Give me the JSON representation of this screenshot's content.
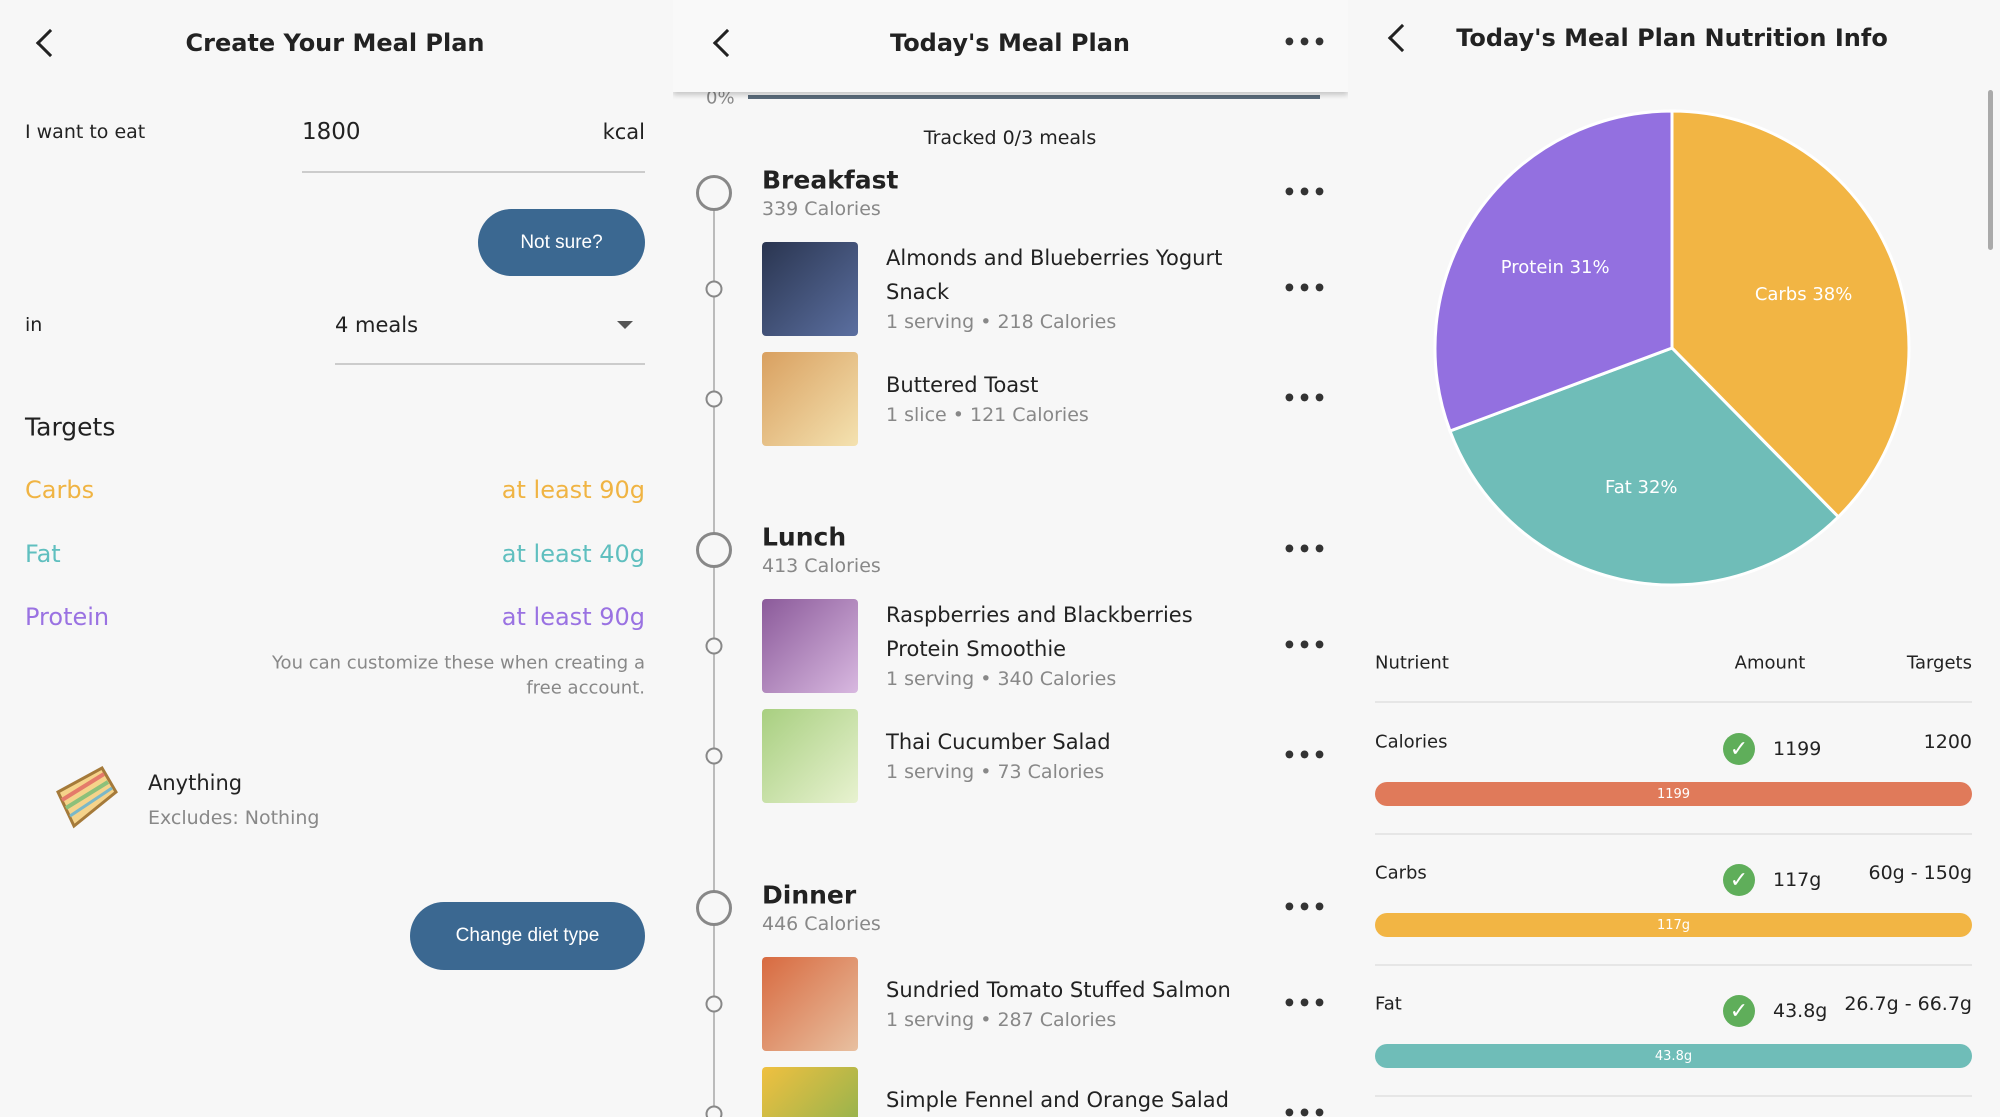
{
  "left": {
    "title": "Create Your Meal Plan",
    "want_label": "I want to eat",
    "kcal_value": "1800",
    "kcal_unit": "kcal",
    "not_sure": "Not sure?",
    "in_label": "in",
    "meals_select": "4 meals",
    "targets_heading": "Targets",
    "targets": [
      {
        "name": "Carbs",
        "value": "at least 90g",
        "color": "#f0b443"
      },
      {
        "name": "Fat",
        "value": "at least 40g",
        "color": "#5fbfbf"
      },
      {
        "name": "Protein",
        "value": "at least 90g",
        "color": "#9a72e2"
      }
    ],
    "note_line1": "You can customize these when creating a",
    "note_line2": "free account.",
    "diet_name": "Anything",
    "diet_excludes": "Excludes:  Nothing",
    "change_diet": "Change diet type"
  },
  "middle": {
    "title": "Today's Meal Plan",
    "progress_label": "0%",
    "progress": 0,
    "tracked": "Tracked 0/3 meals",
    "meals": [
      {
        "name": "Breakfast",
        "calories": "339 Calories",
        "items": [
          {
            "title": [
              "Almonds and Blueberries Yogurt",
              "Snack"
            ],
            "sub": "1 serving • 218 Calories"
          },
          {
            "title": [
              "Buttered Toast"
            ],
            "sub": "1 slice • 121 Calories"
          }
        ]
      },
      {
        "name": "Lunch",
        "calories": "413 Calories",
        "items": [
          {
            "title": [
              "Raspberries and Blackberries",
              "Protein Smoothie"
            ],
            "sub": "1 serving • 340 Calories"
          },
          {
            "title": [
              "Thai Cucumber Salad"
            ],
            "sub": "1 serving • 73 Calories"
          }
        ]
      },
      {
        "name": "Dinner",
        "calories": "446 Calories",
        "items": [
          {
            "title": [
              "Sundried Tomato Stuffed Salmon"
            ],
            "sub": "1 serving • 287 Calories"
          },
          {
            "title": [
              "Simple Fennel and Orange Salad"
            ],
            "sub": ""
          }
        ]
      }
    ]
  },
  "right": {
    "title": "Today's Meal Plan Nutrition Info",
    "headers": {
      "nutrient": "Nutrient",
      "amount": "Amount",
      "targets": "Targets"
    },
    "rows": [
      {
        "name": "Calories",
        "amount": "1199",
        "target": "1200",
        "bar_label": "1199",
        "color": "#e07a5a"
      },
      {
        "name": "Carbs",
        "amount": "117g",
        "target": "60g - 150g",
        "bar_label": "117g",
        "color": "#f2b544"
      },
      {
        "name": "Fat",
        "amount": "43.8g",
        "target": "26.7g - 66.7g",
        "bar_label": "43.8g",
        "color": "#6fbdb8"
      }
    ]
  },
  "chart_data": {
    "type": "pie",
    "labels": [
      "Carbs 38%",
      "Fat 32%",
      "Protein 31%"
    ],
    "categories": [
      "Carbs",
      "Fat",
      "Protein"
    ],
    "values": [
      38,
      32,
      31
    ],
    "colors": [
      "#f2b544",
      "#6fbdb8",
      "#9370e0"
    ]
  }
}
